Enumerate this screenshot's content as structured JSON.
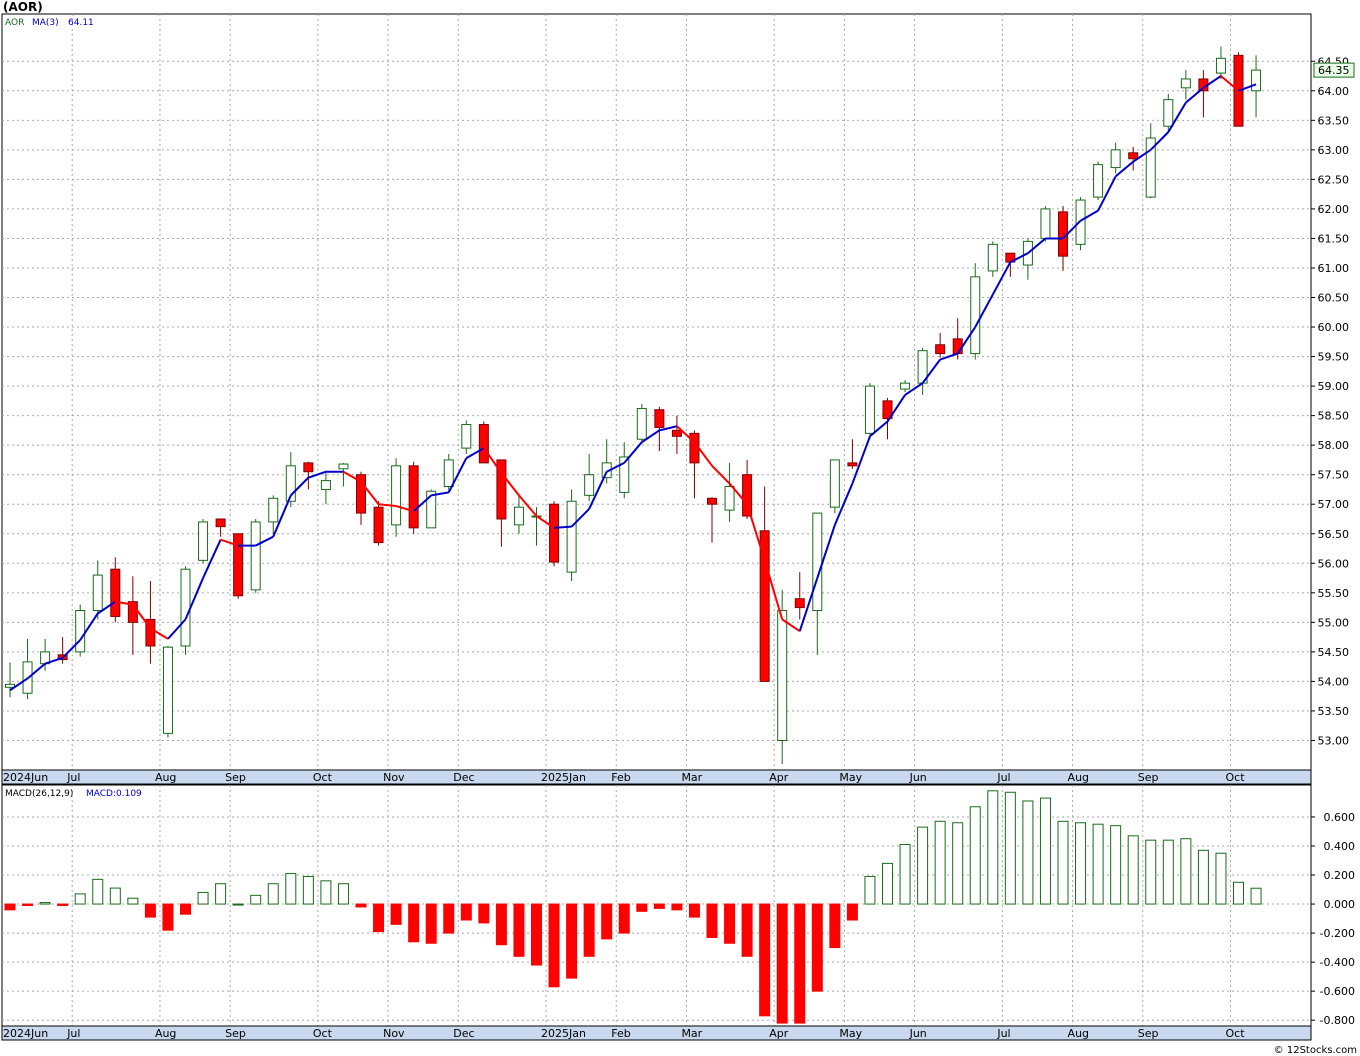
{
  "title": "(AOR)",
  "credit": "© 12Stocks.com",
  "colors": {
    "up": "#1a6b1a",
    "down": "#ff0000",
    "ma_up": "#0000cc",
    "ma_down": "#ff0000",
    "grid": "#aaaaaa",
    "axis_band": "#c8d8ee",
    "label_box": "#e8ffe8"
  },
  "chart_data": [
    {
      "type": "candlestick",
      "legend": {
        "symbol": "AOR",
        "ma_label": "MA(3)",
        "ma_value": "64.11"
      },
      "last_price": "64.35",
      "ylim": [
        52.5,
        65.3
      ],
      "yticks": [
        {
          "v": 53.0,
          "t": "53.00"
        },
        {
          "v": 53.5,
          "t": "53.50"
        },
        {
          "v": 54.0,
          "t": "54.00"
        },
        {
          "v": 54.5,
          "t": "54.50"
        },
        {
          "v": 55.0,
          "t": "55.00"
        },
        {
          "v": 55.5,
          "t": "55.50"
        },
        {
          "v": 56.0,
          "t": "56.00"
        },
        {
          "v": 56.5,
          "t": "56.50"
        },
        {
          "v": 57.0,
          "t": "57.00"
        },
        {
          "v": 57.5,
          "t": "57.50"
        },
        {
          "v": 58.0,
          "t": "58.00"
        },
        {
          "v": 58.5,
          "t": "58.50"
        },
        {
          "v": 59.0,
          "t": "59.00"
        },
        {
          "v": 59.5,
          "t": "59.50"
        },
        {
          "v": 60.0,
          "t": "60.00"
        },
        {
          "v": 60.5,
          "t": "60.50"
        },
        {
          "v": 61.0,
          "t": "61.00"
        },
        {
          "v": 61.5,
          "t": "61.50"
        },
        {
          "v": 62.0,
          "t": "62.00"
        },
        {
          "v": 62.5,
          "t": "62.50"
        },
        {
          "v": 63.0,
          "t": "63.00"
        },
        {
          "v": 63.5,
          "t": "63.50"
        },
        {
          "v": 64.0,
          "t": "64.00"
        },
        {
          "v": 64.5,
          "t": "64.50"
        }
      ],
      "month_ticks": [
        {
          "i": 0,
          "t": "2024Jun"
        },
        {
          "i": 4,
          "t": "Jul"
        },
        {
          "i": 9,
          "t": "Aug"
        },
        {
          "i": 13,
          "t": "Sep"
        },
        {
          "i": 18,
          "t": "Oct"
        },
        {
          "i": 22,
          "t": "Nov"
        },
        {
          "i": 26,
          "t": "Dec"
        },
        {
          "i": 31,
          "t": "2025Jan"
        },
        {
          "i": 35,
          "t": "Feb"
        },
        {
          "i": 39,
          "t": "Mar"
        },
        {
          "i": 44,
          "t": "Apr"
        },
        {
          "i": 48,
          "t": "May"
        },
        {
          "i": 52,
          "t": "Jun"
        },
        {
          "i": 57,
          "t": "Jul"
        },
        {
          "i": 61,
          "t": "Aug"
        },
        {
          "i": 65,
          "t": "Sep"
        },
        {
          "i": 70,
          "t": "Oct"
        }
      ],
      "candles": [
        [
          53.9,
          53.95,
          54.32,
          53.73
        ],
        [
          53.8,
          54.33,
          54.72,
          53.7
        ],
        [
          54.3,
          54.5,
          54.72,
          54.18
        ],
        [
          54.45,
          54.37,
          54.75,
          54.3
        ],
        [
          54.5,
          55.2,
          55.3,
          54.42
        ],
        [
          55.2,
          55.8,
          56.05,
          55.05
        ],
        [
          55.9,
          55.1,
          56.1,
          55.0
        ],
        [
          55.35,
          55.0,
          55.78,
          54.45
        ],
        [
          55.05,
          54.6,
          55.7,
          54.3
        ],
        [
          53.12,
          54.58,
          54.6,
          53.05
        ],
        [
          54.6,
          55.9,
          55.95,
          54.45
        ],
        [
          56.05,
          56.7,
          56.75,
          56.0
        ],
        [
          56.75,
          56.62,
          56.75,
          56.45
        ],
        [
          56.5,
          55.45,
          56.5,
          55.4
        ],
        [
          55.55,
          56.7,
          56.75,
          55.5
        ],
        [
          56.7,
          57.1,
          57.15,
          56.5
        ],
        [
          57.05,
          57.65,
          57.88,
          56.95
        ],
        [
          57.7,
          57.55,
          57.72,
          57.25
        ],
        [
          57.25,
          57.4,
          57.55,
          57.0
        ],
        [
          57.6,
          57.68,
          57.7,
          57.3
        ],
        [
          57.5,
          56.85,
          57.55,
          56.65
        ],
        [
          56.95,
          56.35,
          57.05,
          56.3
        ],
        [
          56.65,
          57.65,
          57.78,
          56.45
        ],
        [
          57.65,
          56.6,
          57.72,
          56.5
        ],
        [
          56.6,
          57.22,
          57.25,
          56.6
        ],
        [
          57.3,
          57.75,
          57.85,
          57.2
        ],
        [
          57.95,
          58.35,
          58.42,
          57.85
        ],
        [
          58.35,
          57.7,
          58.4,
          57.7
        ],
        [
          57.75,
          56.75,
          57.75,
          56.28
        ],
        [
          56.65,
          56.95,
          57.18,
          56.5
        ],
        [
          56.8,
          56.8,
          56.95,
          56.3
        ],
        [
          57.0,
          56.02,
          57.05,
          55.95
        ],
        [
          55.85,
          57.05,
          57.25,
          55.7
        ],
        [
          57.15,
          57.5,
          57.85,
          57.05
        ],
        [
          57.45,
          57.7,
          58.1,
          57.35
        ],
        [
          57.2,
          57.8,
          58.05,
          57.1
        ],
        [
          58.1,
          58.62,
          58.7,
          58.02
        ],
        [
          58.6,
          58.3,
          58.65,
          57.9
        ],
        [
          58.25,
          58.15,
          58.5,
          57.85
        ],
        [
          58.2,
          57.7,
          58.25,
          57.1
        ],
        [
          57.1,
          57.0,
          57.12,
          56.35
        ],
        [
          56.9,
          57.3,
          57.7,
          56.7
        ],
        [
          57.5,
          56.8,
          57.75,
          56.75
        ],
        [
          56.55,
          54.0,
          57.3,
          54.0
        ],
        [
          53.0,
          55.2,
          55.55,
          52.6
        ],
        [
          55.4,
          55.25,
          55.85,
          55.05
        ],
        [
          55.2,
          56.85,
          56.85,
          54.45
        ],
        [
          56.95,
          57.75,
          57.75,
          56.85
        ],
        [
          57.7,
          57.65,
          58.1,
          57.6
        ],
        [
          58.2,
          59.0,
          59.05,
          58.1
        ],
        [
          58.75,
          58.45,
          58.8,
          58.1
        ],
        [
          58.95,
          59.05,
          59.1,
          58.9
        ],
        [
          59.05,
          59.6,
          59.65,
          58.85
        ],
        [
          59.7,
          59.55,
          59.9,
          59.48
        ],
        [
          59.8,
          59.55,
          60.15,
          59.45
        ],
        [
          59.55,
          60.85,
          61.08,
          59.45
        ],
        [
          60.95,
          61.4,
          61.45,
          60.85
        ],
        [
          61.25,
          61.1,
          61.25,
          60.85
        ],
        [
          61.05,
          61.45,
          61.5,
          60.8
        ],
        [
          61.5,
          62.0,
          62.05,
          61.45
        ],
        [
          61.95,
          61.2,
          62.05,
          60.95
        ],
        [
          61.4,
          62.15,
          62.2,
          61.3
        ],
        [
          62.2,
          62.75,
          62.8,
          62.15
        ],
        [
          62.7,
          63.0,
          63.12,
          62.6
        ],
        [
          62.95,
          62.85,
          63.05,
          62.65
        ],
        [
          62.2,
          63.2,
          63.45,
          62.18
        ],
        [
          63.4,
          63.85,
          63.95,
          63.3
        ],
        [
          64.05,
          64.2,
          64.35,
          63.85
        ],
        [
          64.2,
          64.0,
          64.35,
          63.55
        ],
        [
          64.3,
          64.55,
          64.75,
          64.2
        ],
        [
          64.6,
          63.4,
          64.65,
          63.4
        ],
        [
          64.0,
          64.35,
          64.6,
          63.55
        ]
      ],
      "ma3": [
        53.85,
        54.05,
        54.3,
        54.4,
        54.7,
        55.15,
        55.35,
        55.3,
        54.9,
        54.72,
        55.05,
        55.75,
        56.4,
        56.3,
        56.3,
        56.45,
        57.15,
        57.45,
        57.55,
        57.55,
        57.38,
        57.0,
        56.97,
        56.88,
        57.15,
        57.2,
        57.78,
        57.95,
        57.53,
        57.15,
        56.8,
        56.6,
        56.62,
        56.92,
        57.55,
        57.7,
        58.05,
        58.25,
        58.32,
        58.05,
        57.65,
        57.35,
        57.0,
        56.05,
        55.05,
        54.85,
        55.75,
        56.65,
        57.35,
        58.15,
        58.4,
        58.85,
        59.05,
        59.45,
        59.55,
        60.0,
        60.55,
        61.1,
        61.25,
        61.5,
        61.5,
        61.8,
        61.97,
        62.55,
        62.8,
        63.0,
        63.3,
        63.8,
        64.05,
        64.25,
        64.0,
        64.11
      ]
    },
    {
      "type": "bar",
      "legend": {
        "name": "MACD(26,12,9)",
        "value_label": "MACD:0.109"
      },
      "ylim": [
        -0.84,
        0.82
      ],
      "yticks": [
        {
          "v": 0.6,
          "t": "0.600"
        },
        {
          "v": 0.4,
          "t": "0.400"
        },
        {
          "v": 0.2,
          "t": "0.200"
        },
        {
          "v": 0.0,
          "t": "0.000"
        },
        {
          "v": -0.2,
          "t": "-0.200"
        },
        {
          "v": -0.4,
          "t": "-0.400"
        },
        {
          "v": -0.6,
          "t": "-0.600"
        },
        {
          "v": -0.8,
          "t": "-0.800"
        }
      ],
      "values": [
        -0.04,
        -0.01,
        0.01,
        -0.01,
        0.07,
        0.17,
        0.11,
        0.04,
        -0.09,
        -0.18,
        -0.07,
        0.08,
        0.14,
        0.0,
        0.06,
        0.14,
        0.21,
        0.19,
        0.16,
        0.14,
        -0.02,
        -0.19,
        -0.14,
        -0.26,
        -0.27,
        -0.2,
        -0.11,
        -0.13,
        -0.28,
        -0.36,
        -0.42,
        -0.57,
        -0.51,
        -0.36,
        -0.24,
        -0.2,
        -0.05,
        -0.03,
        -0.04,
        -0.09,
        -0.23,
        -0.27,
        -0.36,
        -0.77,
        -0.82,
        -0.82,
        -0.6,
        -0.3,
        -0.11,
        0.19,
        0.28,
        0.41,
        0.53,
        0.57,
        0.56,
        0.67,
        0.78,
        0.77,
        0.71,
        0.73,
        0.57,
        0.56,
        0.55,
        0.54,
        0.47,
        0.44,
        0.44,
        0.45,
        0.37,
        0.35,
        0.15,
        0.109
      ]
    }
  ]
}
